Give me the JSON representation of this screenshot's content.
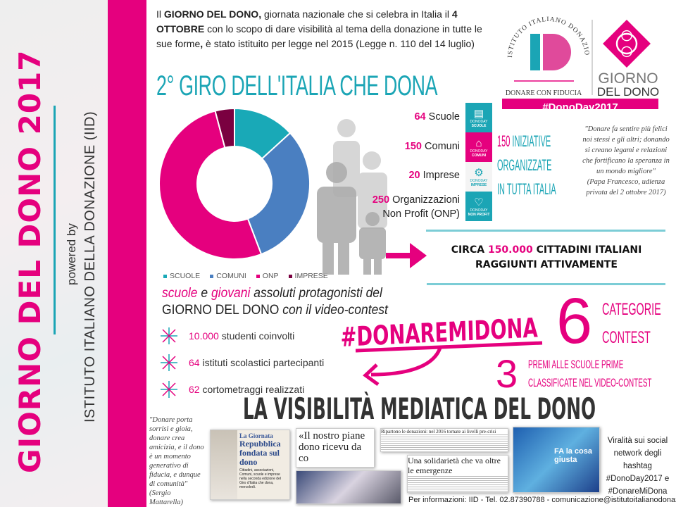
{
  "sidebar": {
    "title": "GIORNO DEL DONO 2017",
    "powered_by": "powered by",
    "institute": "ISTITUTO ITALIANO DELLA DONAZIONE (IID)"
  },
  "intro": {
    "p1": "Il ",
    "b1": "GIORNO DEL DONO,",
    "p2": " giornata nazionale che si celebra in Italia il ",
    "b2": "4 OTTOBRE",
    "p3": " con lo scopo di dare visibilità al tema della donazione in tutte le sue forme",
    "b3": ",",
    "p4": " è stato istituito per legge nel 2015 (Legge n. 110 del 14 luglio)"
  },
  "title": "2° GIRO DELL'ITALIA CHE DONA",
  "logo": {
    "arc_text": "ISTITUTO ITALIANO DONAZIONE",
    "monogram": "ID",
    "tagline": "DONARE CON FIDUCIA",
    "giorno": "GIORNO",
    "del_dono": "DEL DONO",
    "hashtag": "#DonoDay2017"
  },
  "chart_data": {
    "type": "pie",
    "donut": true,
    "categories": [
      "SCUOLE",
      "COMUNI",
      "ONP",
      "IMPRESE"
    ],
    "values": [
      64,
      150,
      250,
      20
    ],
    "colors": [
      "#19a9b7",
      "#4a7fc1",
      "#e5007e",
      "#7a0040"
    ],
    "legend_position": "bottom"
  },
  "stats": [
    {
      "num": "64",
      "label": " Scuole"
    },
    {
      "num": "150",
      "label": " Comuni"
    },
    {
      "num": "20",
      "label": " Imprese"
    },
    {
      "num": "250",
      "label": " Organizzazioni",
      "label2": "Non Profit (ONP)"
    }
  ],
  "strip": [
    {
      "icon": "book-icon",
      "brand": "DONODAY",
      "label": "SCUOLE",
      "color": "#1ba5b5"
    },
    {
      "icon": "building-icon",
      "brand": "DONODAY",
      "label": "COMUNI",
      "color": "#e5007e"
    },
    {
      "icon": "gears-icon",
      "brand": "DONODAY",
      "label": "IMPRESE",
      "color": "#ffffff"
    },
    {
      "icon": "heart-icon",
      "brand": "DONODAY",
      "label": "NON PROFIT",
      "color": "#1ba5b5"
    }
  ],
  "iniziative": {
    "num": "150",
    "l1": " INIZIATIVE",
    "l2": "ORGANIZZATE",
    "l3": "IN TUTTA ITALIA"
  },
  "quote_pope": {
    "text": "\"Donare fa sentire più felici noi stessi e gli altri; donando si creano legami e relazioni che fortificano la speranza in un mondo migliore\"",
    "author": "(Papa Francesco, udienza privata del 2 ottobre 2017)"
  },
  "reach": {
    "pre": "CIRCA ",
    "num": "150.000",
    "post": " CITTADINI ITALIANI",
    "l2": "RAGGIUNTI ATTIVAMENTE"
  },
  "contest_intro": {
    "w1": "scuole",
    "w2": " e ",
    "w3": "giovani",
    "w4": " assoluti protagonisti del",
    "l2a": "GIORNO DEL DONO",
    "l2b": " con il video-contest"
  },
  "bullets": [
    {
      "num": "10.000",
      "text": " studenti coinvolti"
    },
    {
      "num": "64",
      "text": " istituti scolastici partecipanti"
    },
    {
      "num": "62",
      "text": " cortometraggi realizzati"
    }
  ],
  "hashtag": "#DONAREMIDONA",
  "categories": {
    "num": "6",
    "l1": "CATEGORIE",
    "l2": "CONTEST"
  },
  "prizes": {
    "num": "3",
    "l1": "PREMI ALLE SCUOLE PRIME",
    "l2": "CLASSIFICATE NEL VIDEO-CONTEST"
  },
  "media_title": "LA VISIBILITÀ MEDIATICA DEL DONO",
  "quote_mattarella": {
    "text": "\"Donare porta sorrisi e gioia, donare crea amicizia, e il dono è un momento generativo di fiducia, e dunque di comunità\"",
    "author": "(Sergio Mattarella)"
  },
  "clippings": {
    "c1_kicker": "La Giornata",
    "c1_head": "Repubblica fondata sul dono",
    "c1_body": "Cittadini, associazioni, Comuni, scuole e imprese nella seconda edizione del Giro d'Italia che dona, mercoledì.",
    "c2_head": "«Il nostro piane dono ricevu da co",
    "c3_top": "Ripartono le donazioni: nel 2016 tornate ai livelli pre-crisi",
    "c3_head": "Una solidarietà che va oltre le emergenze",
    "c4_text": "FA la cosa giusta"
  },
  "virality": "Viralità sui social network degli hashtag #DonoDay2017 e #DonareMiDona",
  "footer": "Per informazioni: IID - Tel. 02.87390788 - comunicazione@istitutoitalianodonazione.it"
}
